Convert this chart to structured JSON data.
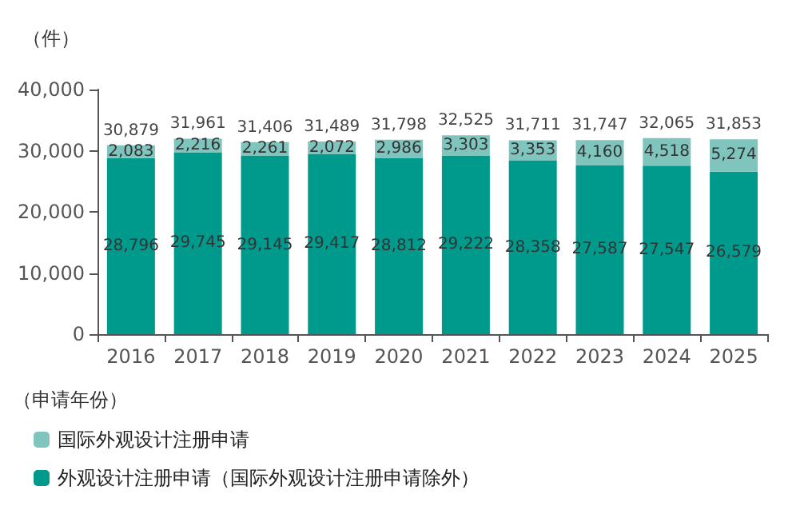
{
  "chart_data": {
    "type": "bar",
    "stacked": true,
    "ylabel": "（件）",
    "xlabel": "（申请年份）",
    "categories": [
      "2016",
      "2017",
      "2018",
      "2019",
      "2020",
      "2021",
      "2022",
      "2023",
      "2024",
      "2025"
    ],
    "series": [
      {
        "name": "外观设计注册申请（国际外观设计注册申请除外）",
        "color": "#009a8c",
        "values": [
          28796,
          29745,
          29145,
          29417,
          28812,
          29222,
          28358,
          27587,
          27547,
          26579
        ],
        "value_labels": [
          "28,796",
          "29,745",
          "29,145",
          "29,417",
          "28,812",
          "29,222",
          "28,358",
          "27,587",
          "27,547",
          "26,579"
        ]
      },
      {
        "name": "国际外观设计注册申请",
        "color": "#7fc5bd",
        "values": [
          2083,
          2216,
          2261,
          2072,
          2986,
          3303,
          3353,
          4160,
          4518,
          5274
        ],
        "value_labels": [
          "2,083",
          "2,216",
          "2,261",
          "2,072",
          "2,986",
          "3,303",
          "3,353",
          "4,160",
          "4,518",
          "5,274"
        ]
      }
    ],
    "totals": [
      "30,879",
      "31,961",
      "31,406",
      "31,489",
      "31,798",
      "32,525",
      "31,711",
      "31,747",
      "32,065",
      "31,853"
    ],
    "ylim": [
      0,
      40000
    ],
    "yticks": [
      0,
      {
        "value": 10000,
        "label": "10,000"
      },
      {
        "value": 20000,
        "label": "20,000"
      },
      {
        "value": 30000,
        "label": "30,000"
      },
      {
        "value": 40000,
        "label": "40,000"
      }
    ],
    "grid": false,
    "legend": "bottom left"
  }
}
